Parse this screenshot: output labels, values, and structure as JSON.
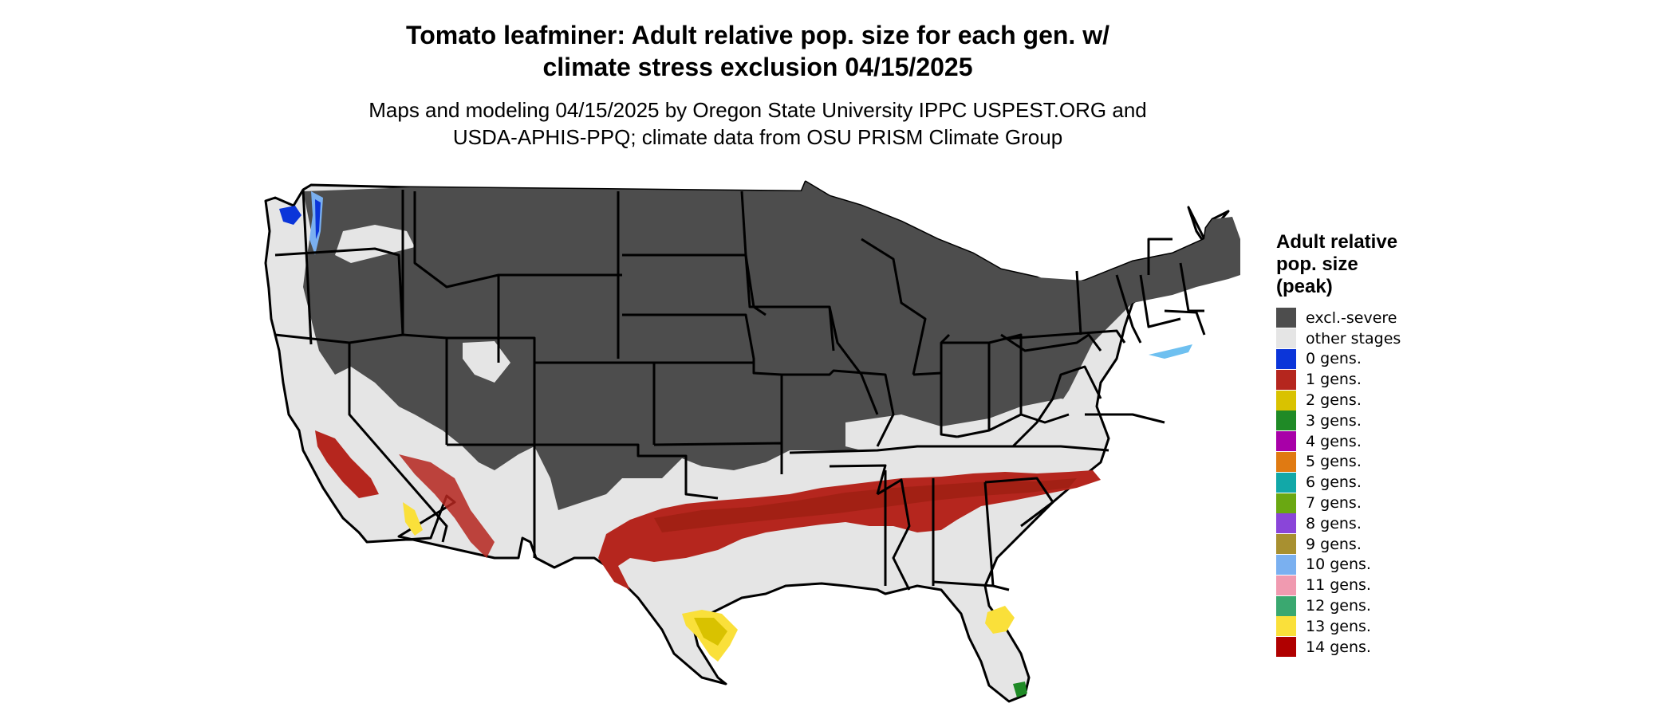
{
  "title_line1": "Tomato leafminer: Adult relative pop. size for each gen. w/",
  "title_line2": "climate stress exclusion 04/15/2025",
  "subtitle_line1": "Maps and modeling 04/15/2025 by Oregon State University IPPC USPEST.ORG and",
  "subtitle_line2": "USDA-APHIS-PPQ; climate data from OSU PRISM Climate Group",
  "legend": {
    "title_line1": "Adult relative",
    "title_line2": "pop. size",
    "title_line3": "(peak)",
    "items": [
      {
        "label": "excl.-severe",
        "color": "#4d4d4d"
      },
      {
        "label": "other stages",
        "color": "#e5e5e5"
      },
      {
        "label": "0 gens.",
        "color": "#0b35d9"
      },
      {
        "label": "1 gens.",
        "color": "#b5261e"
      },
      {
        "label": "2 gens.",
        "color": "#d9c200"
      },
      {
        "label": "3 gens.",
        "color": "#1f8a26"
      },
      {
        "label": "4 gens.",
        "color": "#a800a8"
      },
      {
        "label": "5 gens.",
        "color": "#e07a12"
      },
      {
        "label": "6 gens.",
        "color": "#12a8a8"
      },
      {
        "label": "7 gens.",
        "color": "#6aa812"
      },
      {
        "label": "8 gens.",
        "color": "#8a45d9"
      },
      {
        "label": "9 gens.",
        "color": "#a89030"
      },
      {
        "label": "10 gens.",
        "color": "#7ab0f0"
      },
      {
        "label": "11 gens.",
        "color": "#f09ab0"
      },
      {
        "label": "12 gens.",
        "color": "#3aa870"
      },
      {
        "label": "13 gens.",
        "color": "#fae03a"
      },
      {
        "label": "14 gens.",
        "color": "#b00000"
      }
    ]
  }
}
